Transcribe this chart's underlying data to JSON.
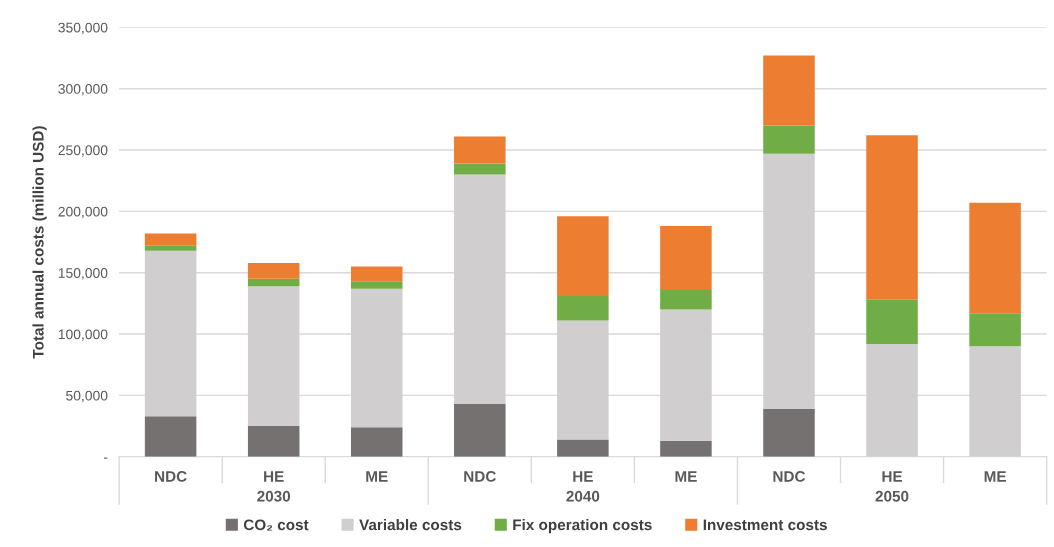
{
  "chart_data": {
    "type": "bar",
    "stacked": true,
    "ylabel": "Total annual costs (million USD)",
    "categories": [
      "NDC",
      "HE",
      "ME",
      "NDC",
      "HE",
      "ME",
      "NDC",
      "HE",
      "ME"
    ],
    "annotations": [
      "2030",
      "2040",
      "2050"
    ],
    "series": [
      {
        "name": "CO₂ cost",
        "color": "#767171",
        "values": [
          33000,
          25000,
          24000,
          43000,
          14000,
          13000,
          39000,
          0,
          0
        ]
      },
      {
        "name": "Variable costs",
        "color": "#d0cece",
        "values": [
          135000,
          114000,
          113000,
          187000,
          97000,
          107000,
          208000,
          92000,
          90000
        ]
      },
      {
        "name": "Fix operation costs",
        "color": "#70ad47",
        "values": [
          4000,
          6000,
          6000,
          9000,
          20000,
          16000,
          23000,
          36000,
          27000
        ]
      },
      {
        "name": "Investment costs",
        "color": "#ed7d31",
        "values": [
          10000,
          13000,
          12000,
          22000,
          65000,
          52000,
          57000,
          134000,
          90000
        ]
      }
    ],
    "ylim": [
      0,
      350000
    ],
    "yticks": [
      {
        "value": 0,
        "label": "-"
      },
      {
        "value": 50000,
        "label": "50,000"
      },
      {
        "value": 100000,
        "label": "100,000"
      },
      {
        "value": 150000,
        "label": "150,000"
      },
      {
        "value": 200000,
        "label": "200,000"
      },
      {
        "value": 250000,
        "label": "250,000"
      },
      {
        "value": 300000,
        "label": "300,000"
      },
      {
        "value": 350000,
        "label": "350,000"
      }
    ],
    "grid": "y",
    "legend": "bottom"
  }
}
